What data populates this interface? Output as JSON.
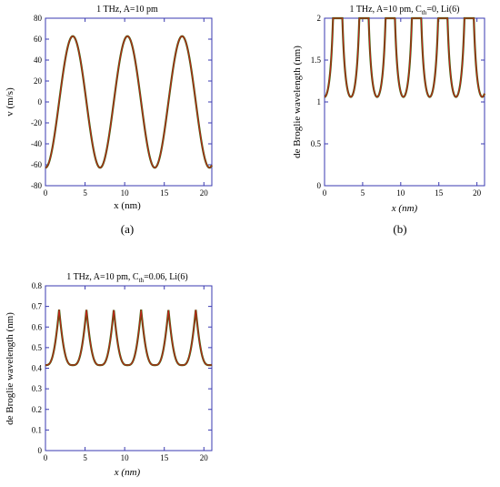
{
  "chart_data": [
    {
      "type": "line",
      "panel_label": "(a)",
      "title": "1 THz, A=10 pm",
      "xlabel": "x (nm)",
      "ylabel": "v (m/s)",
      "xlim": [
        0,
        21
      ],
      "ylim": [
        -80,
        80
      ],
      "xticks": [
        "0",
        "5",
        "10",
        "15",
        "20"
      ],
      "yticks": [
        "-80",
        "-60",
        "-40",
        "-20",
        "0",
        "20",
        "40",
        "60",
        "80"
      ],
      "curve": {
        "shape": "cosine",
        "amplitude": 62.8,
        "period_nm": 6.9,
        "phase_peak_nm": 3.45,
        "sign": -1
      },
      "colors": {
        "line": "#c0201a",
        "overlay": "#3a6a10",
        "axes": "#3a3ab0"
      },
      "grid": false
    },
    {
      "type": "line",
      "panel_label": "(b)",
      "title": {
        "prefix": "1 THz, A=10 pm, C",
        "subscript": "th",
        "suffix": "=0, Li(6)"
      },
      "xlabel": "x (nm)",
      "ylabel": "de Broglie wavelength (nm)",
      "xlim": [
        0,
        21
      ],
      "ylim": [
        0,
        2
      ],
      "xticks": [
        "0",
        "5",
        "10",
        "15",
        "20"
      ],
      "yticks": [
        "0",
        "0.5",
        "1",
        "1.5",
        "2"
      ],
      "curve": {
        "shape": "inverse-abs-velocity",
        "minimum": 1.06,
        "period_nm": 3.45,
        "cusp_start_nm": 1.725,
        "clip": 2
      },
      "colors": {
        "line": "#c0201a",
        "overlay": "#3a6a10",
        "axes": "#3a3ab0"
      },
      "grid": false
    },
    {
      "type": "line",
      "panel_label": "",
      "title": {
        "prefix": "1 THz, A=10 pm, C",
        "subscript": "th",
        "suffix": "=0.06, Li(6)"
      },
      "xlabel": "x (nm)",
      "ylabel": "de Broglie wavelength (nm)",
      "xlim": [
        0,
        21
      ],
      "ylim": [
        0,
        0.8
      ],
      "xticks": [
        "0",
        "5",
        "10",
        "15",
        "20"
      ],
      "yticks": [
        "0",
        "0.1",
        "0.2",
        "0.3",
        "0.4",
        "0.5",
        "0.6",
        "0.7",
        "0.8"
      ],
      "curve": {
        "shape": "thermal-cusp",
        "minimum": 0.415,
        "maximum": 0.685,
        "period_nm": 3.45,
        "cusp_start_nm": 1.725
      },
      "colors": {
        "line": "#c0201a",
        "overlay": "#3a6a10",
        "axes": "#3a3ab0"
      },
      "grid": false
    }
  ]
}
